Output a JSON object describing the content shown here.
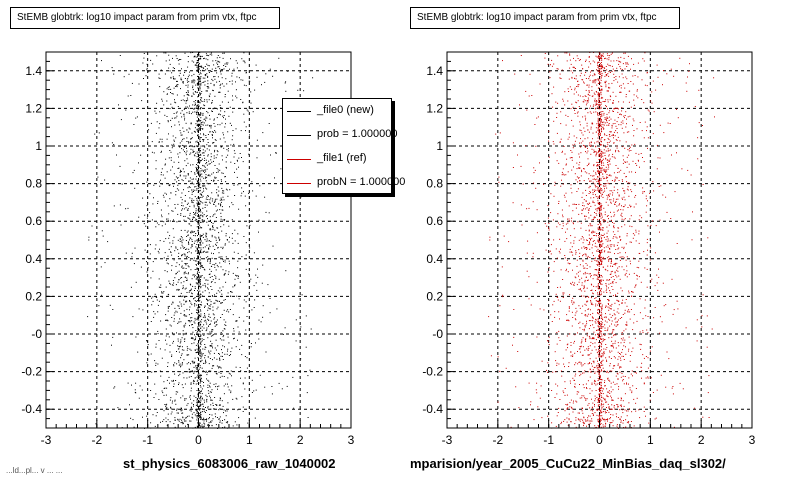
{
  "chart_data": [
    {
      "type": "scatter",
      "panel": "left",
      "title": "StEMB globtrk: log10 impact param from prim vtx, ftpc",
      "xlabel": "st_physics_6083006_raw_1040002",
      "ylabel": "",
      "xlim": [
        -3,
        3
      ],
      "ylim": [
        -0.5,
        1.5
      ],
      "xticks": [
        "-3",
        "-2",
        "-1",
        "0",
        "1",
        "2",
        "3"
      ],
      "yticks": [
        "-0.4",
        "-0.2",
        "-0",
        "0.2",
        "0.4",
        "0.6",
        "0.8",
        "1",
        "1.2",
        "1.4"
      ],
      "grid": true,
      "marker_color": "#000000",
      "series": [
        {
          "distribution": "dense vertical band of points centred near x = 0",
          "x_core": [
            -1,
            1
          ],
          "x_extent": [
            -2.2,
            2.3
          ],
          "y_extent": [
            -0.5,
            1.5
          ]
        }
      ],
      "legend": {
        "placement": "top-right",
        "entries": [
          {
            "label": "_file0 (new)",
            "color": "#000000"
          },
          {
            "label": "prob = 1.000000",
            "color": "#000000"
          },
          {
            "label": "_file1 (ref)",
            "color": "#cc0000"
          },
          {
            "label": "probN = 1.000000",
            "color": "#cc0000"
          }
        ]
      }
    },
    {
      "type": "scatter",
      "panel": "right",
      "title": "StEMB globtrk: log10 impact param from prim vtx, ftpc",
      "xlabel": "mparision/year_2005_CuCu22_MinBias_daq_sl302/",
      "ylabel": "",
      "xlim": [
        -3,
        3
      ],
      "ylim": [
        -0.5,
        1.5
      ],
      "xticks": [
        "-3",
        "-2",
        "-1",
        "0",
        "1",
        "2",
        "3"
      ],
      "yticks": [
        "-0.4",
        "-0.2",
        "-0",
        "0.2",
        "0.4",
        "0.6",
        "0.8",
        "1",
        "1.2",
        "1.4"
      ],
      "grid": true,
      "marker_color": "#cc0000",
      "series": [
        {
          "distribution": "dense vertical band of points centred near x = 0",
          "x_core": [
            -1,
            1
          ],
          "x_extent": [
            -2.2,
            2.3
          ],
          "y_extent": [
            -0.5,
            1.5
          ]
        }
      ]
    }
  ],
  "footnote": "...ld...pl... v ... ..."
}
